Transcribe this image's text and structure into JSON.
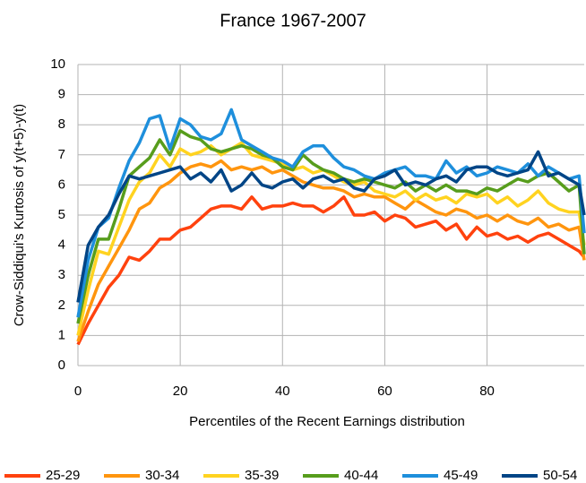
{
  "chart_data": {
    "type": "line",
    "title": "France 1967-2007",
    "x_label": "Percentiles of the Recent Earnings distribution",
    "y_label": "Crow-Siddiqui's Kurtosis of y(t+5)-y(t)",
    "x": [
      0,
      2,
      4,
      6,
      8,
      10,
      12,
      14,
      16,
      18,
      20,
      22,
      24,
      26,
      28,
      30,
      32,
      34,
      36,
      38,
      40,
      42,
      44,
      46,
      48,
      50,
      52,
      54,
      56,
      58,
      60,
      62,
      64,
      66,
      68,
      70,
      72,
      74,
      76,
      78,
      80,
      82,
      84,
      86,
      88,
      90,
      92,
      94,
      96,
      98,
      99
    ],
    "xlim": [
      0,
      99
    ],
    "xticks": [
      0,
      20,
      40,
      60,
      80
    ],
    "ylim": [
      0,
      10
    ],
    "yticks": [
      0,
      1,
      2,
      3,
      4,
      5,
      6,
      7,
      8,
      9,
      10
    ],
    "grid": true,
    "legend": "bottom",
    "series": [
      {
        "name": "25-29",
        "color": "#ff420e",
        "values": [
          0.7,
          1.4,
          2.0,
          2.6,
          3.0,
          3.6,
          3.5,
          3.8,
          4.2,
          4.2,
          4.5,
          4.6,
          4.9,
          5.2,
          5.3,
          5.3,
          5.2,
          5.6,
          5.2,
          5.3,
          5.3,
          5.4,
          5.3,
          5.3,
          5.1,
          5.3,
          5.6,
          5.0,
          5.0,
          5.1,
          4.8,
          5.0,
          4.9,
          4.6,
          4.7,
          4.8,
          4.5,
          4.7,
          4.2,
          4.6,
          4.3,
          4.4,
          4.2,
          4.3,
          4.1,
          4.3,
          4.4,
          4.2,
          4.0,
          3.8,
          3.6
        ]
      },
      {
        "name": "30-34",
        "color": "#ff950e",
        "values": [
          0.8,
          1.8,
          2.7,
          3.3,
          3.9,
          4.5,
          5.2,
          5.4,
          5.9,
          6.1,
          6.4,
          6.6,
          6.7,
          6.6,
          6.8,
          6.5,
          6.6,
          6.5,
          6.6,
          6.4,
          6.5,
          6.3,
          6.1,
          6.0,
          5.9,
          5.9,
          5.8,
          5.6,
          5.7,
          5.6,
          5.6,
          5.4,
          5.2,
          5.5,
          5.3,
          5.1,
          5.0,
          5.2,
          5.1,
          4.9,
          5.0,
          4.8,
          5.0,
          4.8,
          4.7,
          4.9,
          4.6,
          4.7,
          4.5,
          4.6,
          3.5
        ]
      },
      {
        "name": "35-39",
        "color": "#ffd320",
        "values": [
          1.0,
          2.5,
          3.8,
          3.7,
          4.6,
          5.5,
          6.1,
          6.4,
          7.0,
          6.6,
          7.2,
          7.0,
          7.1,
          7.3,
          7.0,
          7.2,
          7.4,
          7.0,
          6.9,
          6.8,
          6.7,
          6.5,
          6.6,
          6.4,
          6.5,
          6.3,
          6.1,
          6.0,
          6.1,
          5.8,
          5.7,
          5.6,
          5.8,
          5.5,
          5.7,
          5.5,
          5.6,
          5.4,
          5.7,
          5.6,
          5.7,
          5.4,
          5.6,
          5.3,
          5.5,
          5.8,
          5.4,
          5.2,
          5.1,
          5.1,
          4.0
        ]
      },
      {
        "name": "40-44",
        "color": "#579d1c",
        "values": [
          1.4,
          3.0,
          4.2,
          4.2,
          5.2,
          6.3,
          6.6,
          6.9,
          7.5,
          7.0,
          7.8,
          7.6,
          7.5,
          7.2,
          7.1,
          7.2,
          7.3,
          7.2,
          7.0,
          6.9,
          6.6,
          6.5,
          7.0,
          6.7,
          6.5,
          6.4,
          6.2,
          6.1,
          6.2,
          6.1,
          6.0,
          5.9,
          6.1,
          5.8,
          6.0,
          5.8,
          6.0,
          5.8,
          5.8,
          5.7,
          5.9,
          5.8,
          6.0,
          6.2,
          6.1,
          6.3,
          6.4,
          6.1,
          5.8,
          6.0,
          3.7
        ]
      },
      {
        "name": "45-49",
        "color": "#1e8fdc",
        "values": [
          1.6,
          3.5,
          4.6,
          4.9,
          5.9,
          6.8,
          7.4,
          8.2,
          8.3,
          7.2,
          8.2,
          8.0,
          7.6,
          7.5,
          7.7,
          8.5,
          7.5,
          7.3,
          7.1,
          6.9,
          6.8,
          6.6,
          7.1,
          7.3,
          7.3,
          6.9,
          6.6,
          6.5,
          6.3,
          6.2,
          6.4,
          6.5,
          6.6,
          6.3,
          6.3,
          6.2,
          6.8,
          6.4,
          6.6,
          6.3,
          6.4,
          6.6,
          6.5,
          6.4,
          6.7,
          6.3,
          6.6,
          6.4,
          6.2,
          6.3,
          4.4
        ]
      },
      {
        "name": "50-54",
        "color": "#004586",
        "values": [
          2.1,
          4.0,
          4.6,
          5.0,
          5.7,
          6.3,
          6.2,
          6.3,
          6.4,
          6.5,
          6.6,
          6.2,
          6.4,
          6.1,
          6.5,
          5.8,
          6.0,
          6.4,
          6.0,
          5.9,
          6.1,
          6.2,
          5.9,
          6.2,
          6.3,
          6.1,
          6.2,
          5.9,
          5.8,
          6.2,
          6.3,
          6.5,
          6.0,
          6.1,
          6.0,
          6.2,
          6.3,
          6.1,
          6.5,
          6.6,
          6.6,
          6.4,
          6.3,
          6.4,
          6.5,
          7.1,
          6.3,
          6.4,
          6.2,
          6.0,
          5.0
        ]
      }
    ]
  }
}
